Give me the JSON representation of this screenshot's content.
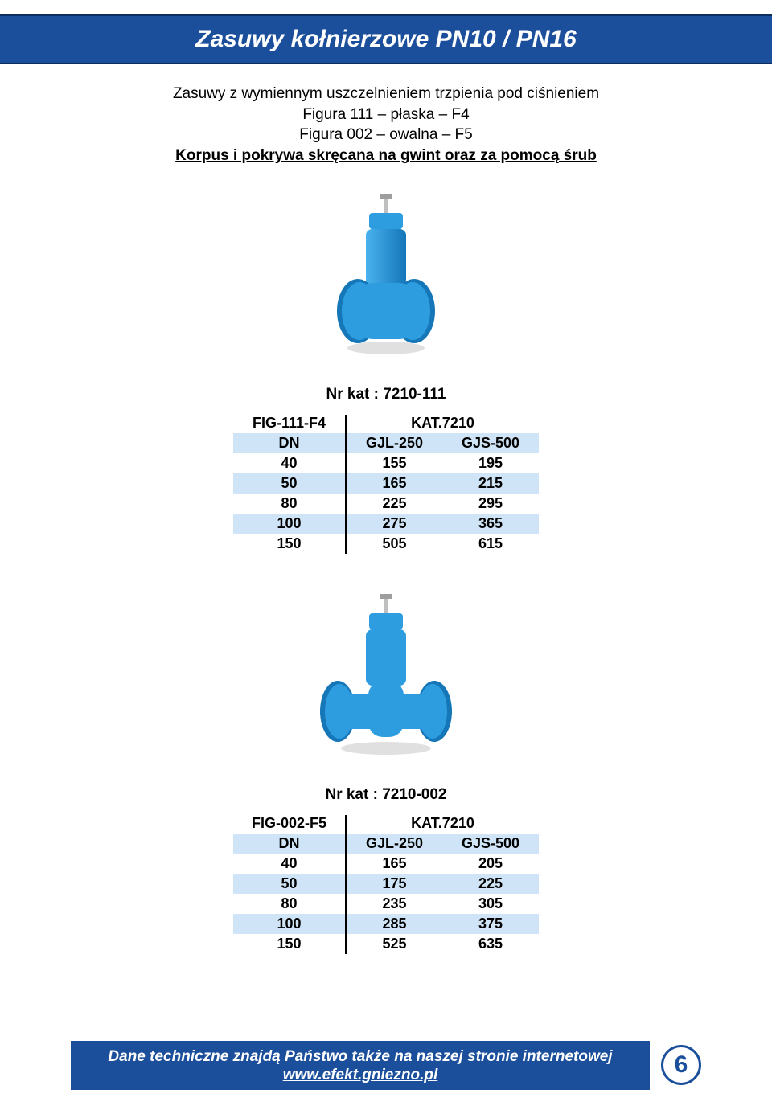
{
  "header": {
    "title": "Zasuwy kołnierzowe PN10 / PN16"
  },
  "intro": {
    "line1": "Zasuwy z wymiennym uszczelnieniem trzpienia pod ciśnieniem",
    "line2": "Figura 111 – płaska – F4",
    "line3": "Figura 002 – owalna – F5",
    "line4": "Korpus i pokrywa skręcana na gwint oraz za pomocą śrub"
  },
  "colors": {
    "band": "#1b4f9c",
    "band_border": "#0d2f5f",
    "row_alt": "#cfe5f7",
    "valve_body": "#2d9de0",
    "valve_shadow": "#1576b8",
    "text": "#000000",
    "white": "#ffffff"
  },
  "products": [
    {
      "nr_kat": "Nr kat : 7210-111",
      "valve_variant": "short",
      "table": {
        "head_left": "FIG-111-F4",
        "head_right": "KAT.7210",
        "sub": {
          "dn": "DN",
          "a": "GJL-250",
          "b": "GJS-500"
        },
        "rows": [
          {
            "dn": "40",
            "a": "155",
            "b": "195",
            "alt": false
          },
          {
            "dn": "50",
            "a": "165",
            "b": "215",
            "alt": true
          },
          {
            "dn": "80",
            "a": "225",
            "b": "295",
            "alt": false
          },
          {
            "dn": "100",
            "a": "275",
            "b": "365",
            "alt": true
          },
          {
            "dn": "150",
            "a": "505",
            "b": "615",
            "alt": false
          }
        ]
      }
    },
    {
      "nr_kat": "Nr kat : 7210-002",
      "valve_variant": "long",
      "table": {
        "head_left": "FIG-002-F5",
        "head_right": "KAT.7210",
        "sub": {
          "dn": "DN",
          "a": "GJL-250",
          "b": "GJS-500"
        },
        "rows": [
          {
            "dn": "40",
            "a": "165",
            "b": "205",
            "alt": false
          },
          {
            "dn": "50",
            "a": "175",
            "b": "225",
            "alt": true
          },
          {
            "dn": "80",
            "a": "235",
            "b": "305",
            "alt": false
          },
          {
            "dn": "100",
            "a": "285",
            "b": "375",
            "alt": true
          },
          {
            "dn": "150",
            "a": "525",
            "b": "635",
            "alt": false
          }
        ]
      }
    }
  ],
  "footer": {
    "line1": "Dane techniczne znajdą Państwo także na naszej stronie internetowej",
    "url": "www.efekt.gniezno.pl",
    "page": "6"
  }
}
